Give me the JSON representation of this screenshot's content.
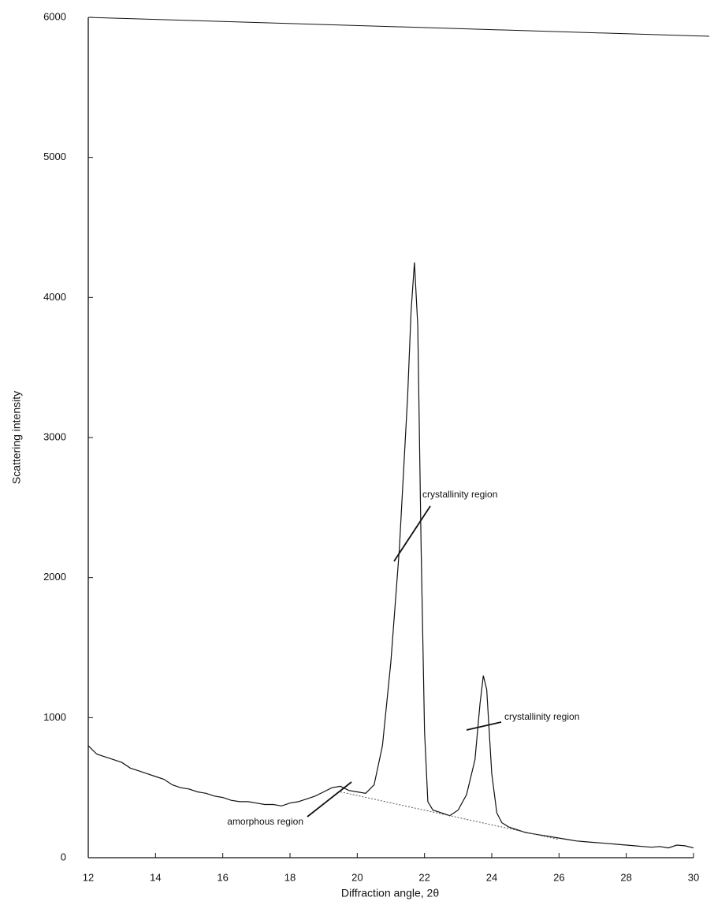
{
  "chart_data": {
    "type": "line",
    "x_label": "Diffraction angle, 2θ",
    "y_label": "Scattering intensity",
    "xlim": [
      12,
      30
    ],
    "xticks": [
      12,
      14,
      16,
      18,
      20,
      22,
      24,
      26,
      28,
      30
    ],
    "ylim": [
      0,
      6000
    ],
    "yticks": [
      0,
      1000,
      2000,
      3000,
      4000,
      5000,
      6000
    ],
    "annotations": [
      "crystallinity region",
      "crystallinity region",
      "amorphous region"
    ],
    "series": [
      {
        "color": "#111111",
        "x": [
          12,
          12.25,
          12.5,
          12.75,
          13,
          13.25,
          13.5,
          13.75,
          14,
          14.25,
          14.5,
          14.75,
          15,
          15.25,
          15.5,
          15.75,
          16,
          16.25,
          16.5,
          16.75,
          17,
          17.25,
          17.5,
          17.75,
          18,
          18.25,
          18.5,
          18.75,
          19,
          19.25,
          19.5,
          19.75,
          20,
          20.25,
          20.5,
          20.75,
          21,
          21.25,
          21.5,
          21.6,
          21.7,
          21.8,
          21.9,
          22,
          22.1,
          22.25,
          22.5,
          22.75,
          23,
          23.25,
          23.5,
          23.65,
          23.75,
          23.85,
          24,
          24.15,
          24.3,
          24.5,
          24.75,
          25,
          25.25,
          25.5,
          25.75,
          26,
          26.25,
          26.5,
          26.75,
          27,
          27.25,
          27.5,
          27.75,
          28,
          28.25,
          28.5,
          28.75,
          29,
          29.25,
          29.5,
          29.75,
          30
        ],
        "values": [
          800,
          740,
          720,
          700,
          680,
          640,
          620,
          600,
          580,
          560,
          520,
          500,
          490,
          470,
          460,
          440,
          430,
          410,
          400,
          400,
          390,
          380,
          380,
          370,
          390,
          400,
          420,
          440,
          470,
          500,
          510,
          480,
          470,
          460,
          520,
          800,
          1400,
          2200,
          3300,
          3900,
          4250,
          3800,
          2200,
          900,
          400,
          340,
          320,
          300,
          340,
          450,
          700,
          1100,
          1300,
          1200,
          600,
          320,
          250,
          220,
          200,
          180,
          170,
          160,
          150,
          140,
          130,
          120,
          115,
          110,
          105,
          100,
          95,
          90,
          85,
          80,
          75,
          80,
          70,
          90,
          85,
          70
        ]
      },
      {
        "color": "#555555",
        "x": [
          19.5,
          26
        ],
        "values": [
          470,
          130
        ]
      }
    ]
  }
}
